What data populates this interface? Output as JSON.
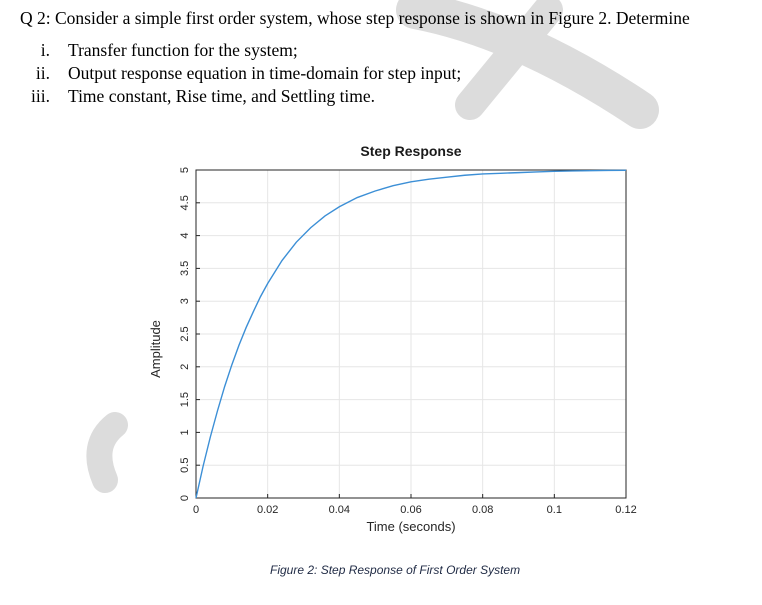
{
  "question": {
    "title": "Q 2: Consider a simple first order system, whose step response is shown in Figure 2. Determine",
    "items": [
      {
        "num": "i.",
        "text": "Transfer function for the system;"
      },
      {
        "num": "ii.",
        "text": "Output response equation in time-domain for step input;"
      },
      {
        "num": "iii.",
        "text": "Time constant, Rise time, and Settling time."
      }
    ]
  },
  "colors": {
    "curve": "#3c8fd6",
    "axis": "#262626",
    "grid": "#e6e6e6",
    "watermark": "#dcdcdc"
  },
  "chart_data": {
    "type": "line",
    "title": "Step Response",
    "xlabel": "Time (seconds)",
    "ylabel": "Amplitude",
    "xlim": [
      0,
      0.12
    ],
    "ylim": [
      0,
      5
    ],
    "xticks": [
      0,
      0.02,
      0.04,
      0.06,
      0.08,
      0.1,
      0.12
    ],
    "xtick_labels": [
      "0",
      "0.02",
      "0.04",
      "0.06",
      "0.08",
      "0.1",
      "0.12"
    ],
    "yticks": [
      0,
      0.5,
      1,
      1.5,
      2,
      2.5,
      3,
      3.5,
      4,
      4.5,
      5
    ],
    "ytick_labels": [
      "0",
      "0.5",
      "1",
      "1.5",
      "2",
      "2.5",
      "3",
      "3.5",
      "4",
      "4.5",
      "5"
    ],
    "grid": true,
    "series": [
      {
        "x": [
          0,
          0.002,
          0.004,
          0.006,
          0.008,
          0.01,
          0.012,
          0.014,
          0.016,
          0.018,
          0.02,
          0.024,
          0.028,
          0.032,
          0.036,
          0.04,
          0.045,
          0.05,
          0.055,
          0.06,
          0.065,
          0.07,
          0.075,
          0.08,
          0.085,
          0.09,
          0.095,
          0.1,
          0.105,
          0.11,
          0.115,
          0.12
        ],
        "y": [
          0,
          0.49,
          0.93,
          1.33,
          1.7,
          2.03,
          2.33,
          2.6,
          2.84,
          3.07,
          3.27,
          3.62,
          3.9,
          4.12,
          4.3,
          4.44,
          4.58,
          4.68,
          4.76,
          4.82,
          4.86,
          4.89,
          4.92,
          4.94,
          4.95,
          4.96,
          4.97,
          4.98,
          4.985,
          4.99,
          4.993,
          4.995
        ]
      }
    ]
  },
  "caption": "Figure 2: Step Response of First Order System"
}
